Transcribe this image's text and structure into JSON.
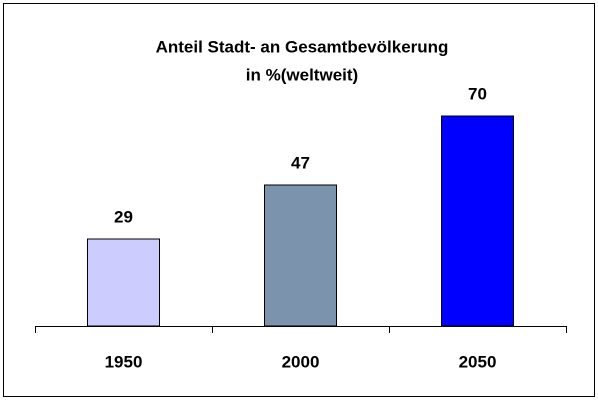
{
  "chart_data": {
    "type": "bar",
    "title": "Anteil Stadt- an Gesamtbevölkerung",
    "subtitle": "in %(weltweit)",
    "categories": [
      "1950",
      "2000",
      "2050"
    ],
    "values": [
      29,
      47,
      70
    ],
    "colors": [
      "#ccccff",
      "#7b93ad",
      "#0000ff"
    ],
    "ylim": [
      0,
      80
    ]
  }
}
